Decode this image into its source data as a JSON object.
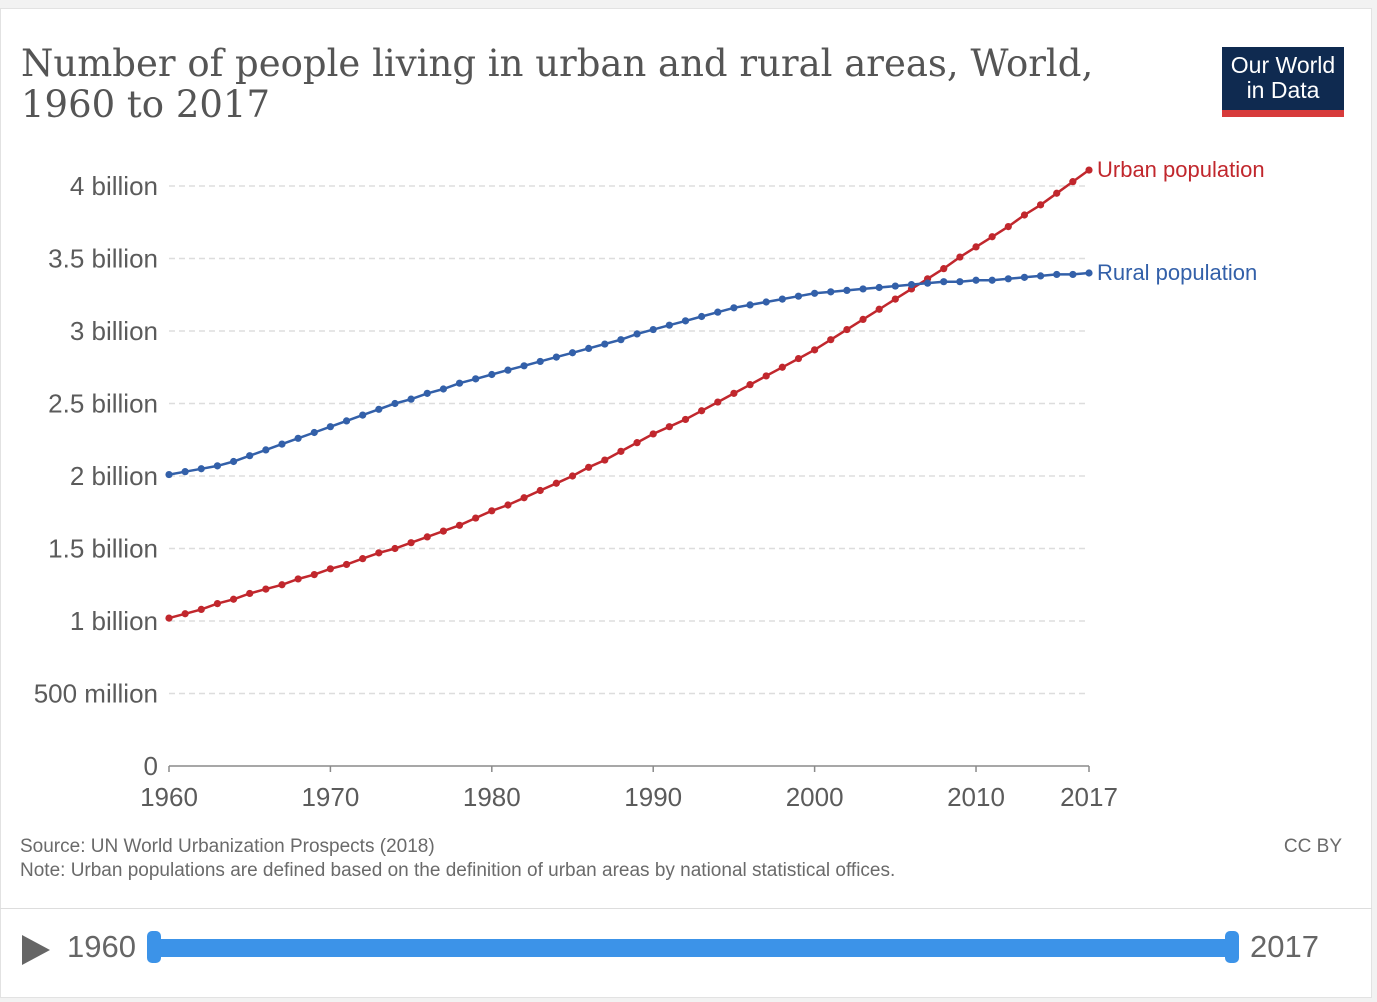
{
  "title": "Number of people living in urban and rural areas, World, 1960 to 2017",
  "logo": {
    "line1": "Our World",
    "line2": "in Data"
  },
  "footer": {
    "source": "Source: UN World Urbanization Prospects (2018)",
    "note": "Note: Urban populations are defined based on the definition of urban areas by national statistical offices.",
    "license": "CC BY"
  },
  "timeline": {
    "start_label": "1960",
    "end_label": "2017",
    "play_icon": "play-icon"
  },
  "colors": {
    "urban": "#c1272d",
    "rural": "#3360a9",
    "grid": "#dddddd",
    "axis": "#5b5b5b",
    "slider": "#3c93e8",
    "logo_bg": "#0f2a50",
    "logo_accent": "#d73b3b"
  },
  "chart_data": {
    "type": "line",
    "title": "Number of people living in urban and rural areas, World, 1960 to 2017",
    "xlim": [
      1960,
      2017
    ],
    "ylim": [
      0,
      4000000000
    ],
    "x_ticks": [
      1960,
      1970,
      1980,
      1990,
      2000,
      2010,
      2017
    ],
    "y_ticks": [
      {
        "value": 0,
        "label": "0"
      },
      {
        "value": 500000000,
        "label": "500 million"
      },
      {
        "value": 1000000000,
        "label": "1 billion"
      },
      {
        "value": 1500000000,
        "label": "1.5 billion"
      },
      {
        "value": 2000000000,
        "label": "2 billion"
      },
      {
        "value": 2500000000,
        "label": "2.5 billion"
      },
      {
        "value": 3000000000,
        "label": "3 billion"
      },
      {
        "value": 3500000000,
        "label": "3.5 billion"
      },
      {
        "value": 4000000000,
        "label": "4 billion"
      }
    ],
    "grid": "horizontal dashed",
    "x": [
      1960,
      1961,
      1962,
      1963,
      1964,
      1965,
      1966,
      1967,
      1968,
      1969,
      1970,
      1971,
      1972,
      1973,
      1974,
      1975,
      1976,
      1977,
      1978,
      1979,
      1980,
      1981,
      1982,
      1983,
      1984,
      1985,
      1986,
      1987,
      1988,
      1989,
      1990,
      1991,
      1992,
      1993,
      1994,
      1995,
      1996,
      1997,
      1998,
      1999,
      2000,
      2001,
      2002,
      2003,
      2004,
      2005,
      2006,
      2007,
      2008,
      2009,
      2010,
      2011,
      2012,
      2013,
      2014,
      2015,
      2016,
      2017
    ],
    "series": [
      {
        "name": "Urban population",
        "color": "#c1272d",
        "values": [
          1020000000,
          1050000000,
          1080000000,
          1120000000,
          1150000000,
          1190000000,
          1220000000,
          1250000000,
          1290000000,
          1320000000,
          1360000000,
          1390000000,
          1430000000,
          1470000000,
          1500000000,
          1540000000,
          1580000000,
          1620000000,
          1660000000,
          1710000000,
          1760000000,
          1800000000,
          1850000000,
          1900000000,
          1950000000,
          2000000000,
          2060000000,
          2110000000,
          2170000000,
          2230000000,
          2290000000,
          2340000000,
          2390000000,
          2450000000,
          2510000000,
          2570000000,
          2630000000,
          2690000000,
          2750000000,
          2810000000,
          2870000000,
          2940000000,
          3010000000,
          3080000000,
          3150000000,
          3220000000,
          3290000000,
          3360000000,
          3430000000,
          3510000000,
          3580000000,
          3650000000,
          3720000000,
          3800000000,
          3870000000,
          3950000000,
          4030000000,
          4110000000
        ]
      },
      {
        "name": "Rural population",
        "color": "#3360a9",
        "values": [
          2010000000,
          2030000000,
          2050000000,
          2070000000,
          2100000000,
          2140000000,
          2180000000,
          2220000000,
          2260000000,
          2300000000,
          2340000000,
          2380000000,
          2420000000,
          2460000000,
          2500000000,
          2530000000,
          2570000000,
          2600000000,
          2640000000,
          2670000000,
          2700000000,
          2730000000,
          2760000000,
          2790000000,
          2820000000,
          2850000000,
          2880000000,
          2910000000,
          2940000000,
          2980000000,
          3010000000,
          3040000000,
          3070000000,
          3100000000,
          3130000000,
          3160000000,
          3180000000,
          3200000000,
          3220000000,
          3240000000,
          3260000000,
          3270000000,
          3280000000,
          3290000000,
          3300000000,
          3310000000,
          3320000000,
          3330000000,
          3340000000,
          3340000000,
          3350000000,
          3350000000,
          3360000000,
          3370000000,
          3380000000,
          3390000000,
          3390000000,
          3400000000
        ]
      }
    ]
  }
}
